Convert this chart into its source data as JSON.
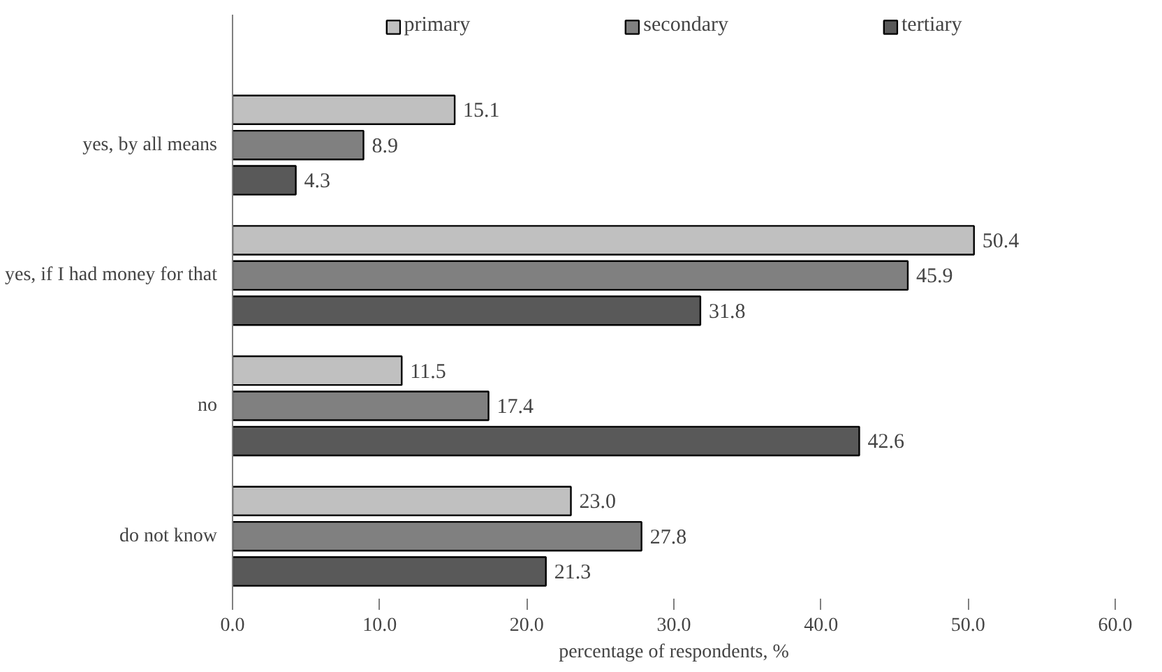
{
  "chart_data": {
    "type": "bar",
    "orientation": "horizontal",
    "xlabel": "percentage of respondents, %",
    "categories": [
      "yes, by all means",
      "yes, if I had money for that",
      "no",
      "do not know"
    ],
    "series": [
      {
        "name": "primary",
        "color": "#c0c0c0",
        "values": [
          15.1,
          50.4,
          11.5,
          23.0
        ],
        "value_labels": [
          "15.1",
          "50.4",
          "11.5",
          "23.0"
        ]
      },
      {
        "name": "secondary",
        "color": "#808080",
        "values": [
          8.9,
          45.9,
          17.4,
          27.8
        ],
        "value_labels": [
          "8.9",
          "45.9",
          "17.4",
          "27.8"
        ]
      },
      {
        "name": "tertiary",
        "color": "#595959",
        "values": [
          4.3,
          31.8,
          42.6,
          21.3
        ],
        "value_labels": [
          "4.3",
          "31.8",
          "42.6",
          "21.3"
        ]
      }
    ],
    "xlim": [
      0,
      60
    ],
    "xticks": [
      {
        "value": 0,
        "label": "0.0"
      },
      {
        "value": 10,
        "label": "10.0"
      },
      {
        "value": 20,
        "label": "20.0"
      },
      {
        "value": 30,
        "label": "30.0"
      },
      {
        "value": 40,
        "label": "40.0"
      },
      {
        "value": 50,
        "label": "50.0"
      },
      {
        "value": 60,
        "label": "60.0"
      }
    ],
    "grid": false,
    "legend": "top"
  }
}
